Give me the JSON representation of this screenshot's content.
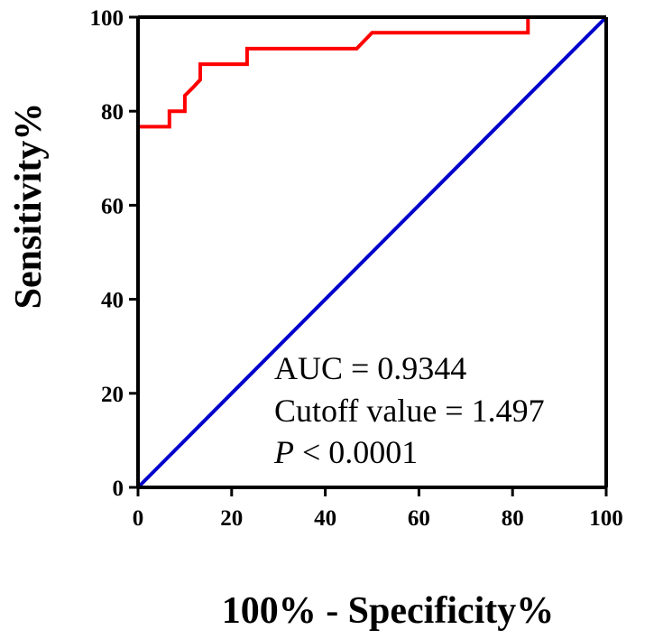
{
  "chart_data": {
    "type": "line",
    "title": "",
    "xlabel": "100% - Specificity%",
    "ylabel": "Sensitivity%",
    "xlim": [
      0,
      100
    ],
    "ylim": [
      0,
      100
    ],
    "x_ticks": [
      0,
      20,
      40,
      60,
      80,
      100
    ],
    "y_ticks": [
      0,
      20,
      40,
      60,
      80,
      100
    ],
    "grid": false,
    "series": [
      {
        "name": "",
        "color": "#ff0000",
        "step": true,
        "points": [
          [
            0,
            0
          ],
          [
            0,
            76.7
          ],
          [
            6.7,
            76.7
          ],
          [
            6.7,
            80
          ],
          [
            10,
            80
          ],
          [
            10,
            83.3
          ],
          [
            11.7,
            85
          ],
          [
            13.3,
            86.7
          ],
          [
            13.3,
            90
          ],
          [
            23.3,
            90
          ],
          [
            23.3,
            93.3
          ],
          [
            46.7,
            93.3
          ],
          [
            50,
            96.7
          ],
          [
            83.3,
            96.7
          ],
          [
            83.3,
            100
          ],
          [
            100,
            100
          ]
        ]
      },
      {
        "name": "",
        "color": "#0000cc",
        "step": false,
        "points": [
          [
            0,
            0
          ],
          [
            100,
            100
          ]
        ]
      }
    ],
    "annotations": {
      "auc": "AUC = 0.9344",
      "cutoff": "Cutoff value = 1.497",
      "p_symbol": "P",
      "p_rest": " < 0.0001"
    }
  }
}
